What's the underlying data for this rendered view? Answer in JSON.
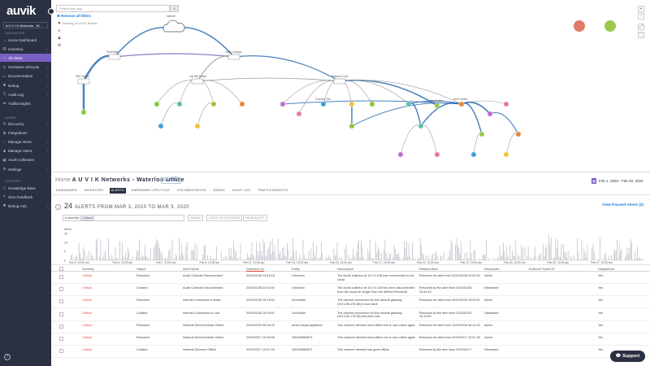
{
  "app": {
    "logo": "auvik"
  },
  "sidebar": {
    "tenant": "A U V I K Networks - W...",
    "navigation_header": "NAVIGATION",
    "admin_header": "ADMIN",
    "support_header": "SUPPORT",
    "nav_items": [
      {
        "label": "Home Dashboard",
        "icon": "home-icon"
      },
      {
        "label": "Inventory",
        "icon": "inventory-icon"
      },
      {
        "label": "All Alerts",
        "icon": "bell-icon"
      },
      {
        "label": "Hardware Lifecycle",
        "icon": "lifecycle-icon"
      },
      {
        "label": "Documentation",
        "icon": "document-icon"
      },
      {
        "label": "Debug",
        "icon": "bug-icon"
      },
      {
        "label": "Audit Log",
        "icon": "log-icon"
      },
      {
        "label": "TrafficInsights",
        "icon": "traffic-icon"
      }
    ],
    "admin_items": [
      {
        "label": "Discovery",
        "icon": "discovery-icon"
      },
      {
        "label": "Integrations",
        "icon": "integrations-icon"
      },
      {
        "label": "Manage Alerts",
        "icon": "bell-settings-icon"
      },
      {
        "label": "Manage Users",
        "icon": "users-icon"
      },
      {
        "label": "Auvik Collectors",
        "icon": "collector-icon"
      },
      {
        "label": "Settings",
        "icon": "gear-icon"
      }
    ],
    "support_items": [
      {
        "label": "Knowledge Base",
        "icon": "book-icon"
      },
      {
        "label": "Give Feedback",
        "icon": "feedback-icon"
      },
      {
        "label": "Debug Hub",
        "icon": "debug-hub-icon"
      }
    ]
  },
  "map": {
    "search_placeholder": "Search the map",
    "remove_filters": "✖ Remove all filters",
    "showing": "Showing: 50 of 967 devices",
    "cloud_label": "Internet",
    "node_labels": [
      "SonicWall",
      "Main Campus",
      "Cloud",
      "HPE Switch",
      "Waterloo Core",
      "Lab MS Switch",
      "Foundry_SW",
      "Atlas Switch",
      "UniFi Switch"
    ]
  },
  "detail": {
    "crumb_prefix": "Home",
    "crumb_title": "A U V I K Networks - Waterloo Office",
    "support_pill": "SUPPORT",
    "date_range": "Feb 1, 2020 - Feb 29, 2020",
    "tabs": [
      "DASHBOARD",
      "INVENTORY",
      "ALERTS",
      "HARDWARE LIFECYCLE",
      "DOCUMENTATION",
      "DEBUG",
      "AUDIT LOG",
      "TRAFFICINSIGHTS"
    ],
    "active_tab": "ALERTS",
    "alert_count": "24",
    "alert_title": "ALERTS FROM MAR 3, 2020 TO MAR 3, 2020",
    "view_paused": "View Paused Alerts (2)",
    "filter_prefix": "# severity:",
    "filter_value": "Critical",
    "filter_buttons": [
      "DISMISS",
      "CREATE NOTIFICATIONS",
      "PAUSE ALERTS"
    ],
    "histogram": {
      "y_label": "Alerts",
      "y_ticks": [
        "15",
        "10",
        "5",
        "0"
      ],
      "x_ticks": [
        "Feb 3, 12:00 am",
        "Feb 5, 12:00 am",
        "Feb 7, 12:00 am",
        "Feb 9, 12:00 am",
        "Feb 11, 12:00 am",
        "Feb 13, 12:00 am",
        "Feb 15, 12:00 am",
        "Feb 17, 12:00 am",
        "Feb 19, 12:00 am",
        "Feb 21, 12:00 am",
        "Feb 23, 12:00 am",
        "Feb 25, 12:00 am",
        "Feb 27, 12:00 am"
      ]
    },
    "columns": [
      "Severity",
      "Status",
      "Alert Name",
      "Detected On",
      "Entity",
      "Description",
      "Related Alert",
      "Dismissed",
      "External Ticket ID",
      "Dispatched"
    ],
    "rows": [
      {
        "severity": "Critical",
        "status": "Resolved",
        "name": "Auvik Collector Reconnected",
        "detected": "2020/02/28 23:44:18",
        "entity": "Unknown",
        "description": "The Auvik collector at 10.0.0.105 has reconnected to the cloud",
        "related": "Resolves the alert from 2020/02/28 22:52:00",
        "dismissed": "Active",
        "dispatched": "Yes"
      },
      {
        "severity": "Critical",
        "status": "Created",
        "name": "Auvik Collector Disconnected",
        "detected": "2020/02/28 22:52:00",
        "entity": "Unknown",
        "description": "The Auvik collector at 10.0.0.105 has been disconnected from the cloud for longer than the defined threshold",
        "related": "Resolved by the alert from 2020/02/28 23:44:18",
        "dismissed": "Dismissed",
        "dispatched": "Yes"
      },
      {
        "severity": "Critical",
        "status": "Resolved",
        "name": "Internet Connection is Back",
        "detected": "2020/02/25 15:13:52",
        "entity": "SonicWall",
        "description": "The internet connection for this default gateway (192.155.178.38) is now back",
        "related": "Resolves the alert from 2020/02/25 15:03:51",
        "dismissed": "Active",
        "dispatched": "Yes"
      },
      {
        "severity": "Critical",
        "status": "Created",
        "name": "Internet Connection is Lost",
        "detected": "2020/02/25 15:03:51",
        "entity": "SonicWall",
        "description": "The internet connection for this default gateway (192.155.178.38) has been lost.",
        "related": "Resolved by the alert from 2020/02/25 15:13:52",
        "dismissed": "Dismissed",
        "dispatched": "Yes"
      },
      {
        "severity": "Critical",
        "status": "Resolved",
        "name": "Network Element Back Online",
        "detected": "2020/02/20 08:34:03",
        "entity": "auvik-virtual-appliance",
        "description": "This network element went offline but is now online again",
        "related": "Resolves the alert from 2020/02/16 06:15:32",
        "dismissed": "Active",
        "dispatched": "Yes"
      },
      {
        "severity": "Critical",
        "status": "Resolved",
        "name": "Network Element Back Online",
        "detected": "2020/02/17 10:55:28",
        "entity": "198169863670",
        "description": "This network element went offline but is now online again",
        "related": "Resolves the alert from 2020/02/17 10:47:43",
        "dismissed": "Active",
        "dispatched": "Yes"
      },
      {
        "severity": "Critical",
        "status": "Created",
        "name": "Network Element Offline",
        "detected": "2020/02/17 10:47:43",
        "entity": "198169863670",
        "description": "This network element has gone offline",
        "related": "Resolved by the alert from 2020/02/17",
        "dismissed": "Dismissed",
        "dispatched": "Yes"
      }
    ],
    "support_button": "Support"
  },
  "colors": {
    "sidebar": "#2b3142",
    "accent": "#7b5fc4",
    "link": "#1a7bd8",
    "critical": "#e0403f"
  }
}
